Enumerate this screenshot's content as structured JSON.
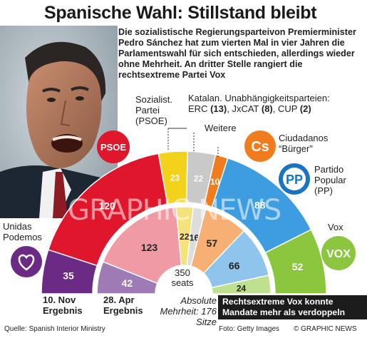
{
  "title": "Spanische Wahl: Stillstand bleibt",
  "intro": "Die sozialistische Regierungsparteivon Premierminister Pedro Sánchez hat zum vierten Mal in vier Jahren die Parlamentswahl für sich entschieden, allerdings wieder ohne Mehrheit. An dritter Stelle rangiert die rechtsextreme Partei Vox",
  "labels": {
    "psoe": "Sozialist. Partei (PSOE)",
    "catalan_title": "Katalan. Unabhängigkeitsparteien:",
    "catalan_erc": "ERC",
    "catalan_erc_n": "(13)",
    "catalan_jxcat": "JxCAT",
    "catalan_jxcat_n": "(8)",
    "catalan_cup": "CUP",
    "catalan_cup_n": "(2)",
    "weitere": "Weitere",
    "ciudadanos": "Ciudadanos “Bürger”",
    "pp": "Partido Popular (PP)",
    "podemos": "Unidas Podemos",
    "vox": "Vox",
    "nov": "10. Nov Ergebnis",
    "apr": "28. Apr Ergebnis",
    "seats_num": "350",
    "seats_word": "seats",
    "majority": "Absolute Mehrheit: 176 Sitze",
    "callout": "Rechtsextreme Vox konnte Mandate mehr als verdoppeln",
    "source": "Quelle: Spanish Interior Ministry",
    "photo": "Foto: Getty Images",
    "copyright": "© GRAPHIC NEWS",
    "watermark": "GRAPHIC NEWS"
  },
  "logos": {
    "psoe": "PSOE",
    "cs": "Cs",
    "pp": "PP",
    "vox": "VOX"
  },
  "colors": {
    "podemos": "#6b2a83",
    "psoe": "#e0172c",
    "catalan": "#f2d21a",
    "weitere": "#c9c9c9",
    "ciudadanos": "#f07c1e",
    "pp": "#3e9de0",
    "vox": "#8cc63e"
  },
  "chart_data": [
    {
      "type": "parliament-hemicycle",
      "name": "10. Nov Ergebnis",
      "total": 350,
      "majority": 176,
      "series": [
        {
          "name": "Unidas Podemos",
          "key": "podemos",
          "value": 35
        },
        {
          "name": "PSOE",
          "key": "psoe",
          "value": 120
        },
        {
          "name": "Katalan. Unabhängigkeitsparteien",
          "key": "catalan",
          "value": 23
        },
        {
          "name": "Weitere",
          "key": "weitere",
          "value": 22
        },
        {
          "name": "Ciudadanos",
          "key": "ciudadanos",
          "value": 10
        },
        {
          "name": "PP",
          "key": "pp",
          "value": 88
        },
        {
          "name": "Vox",
          "key": "vox",
          "value": 52
        }
      ]
    },
    {
      "type": "parliament-hemicycle",
      "name": "28. Apr Ergebnis",
      "total": 350,
      "series": [
        {
          "name": "Unidas Podemos",
          "key": "podemos",
          "value": 42
        },
        {
          "name": "PSOE",
          "key": "psoe",
          "value": 123
        },
        {
          "name": "Katalan. Unabhängigkeitsparteien",
          "key": "catalan",
          "value": 22
        },
        {
          "name": "Weitere",
          "key": "weitere",
          "value": 16
        },
        {
          "name": "Ciudadanos",
          "key": "ciudadanos",
          "value": 57
        },
        {
          "name": "PP",
          "key": "pp",
          "value": 66
        },
        {
          "name": "Vox",
          "key": "vox",
          "value": 24
        }
      ]
    }
  ]
}
